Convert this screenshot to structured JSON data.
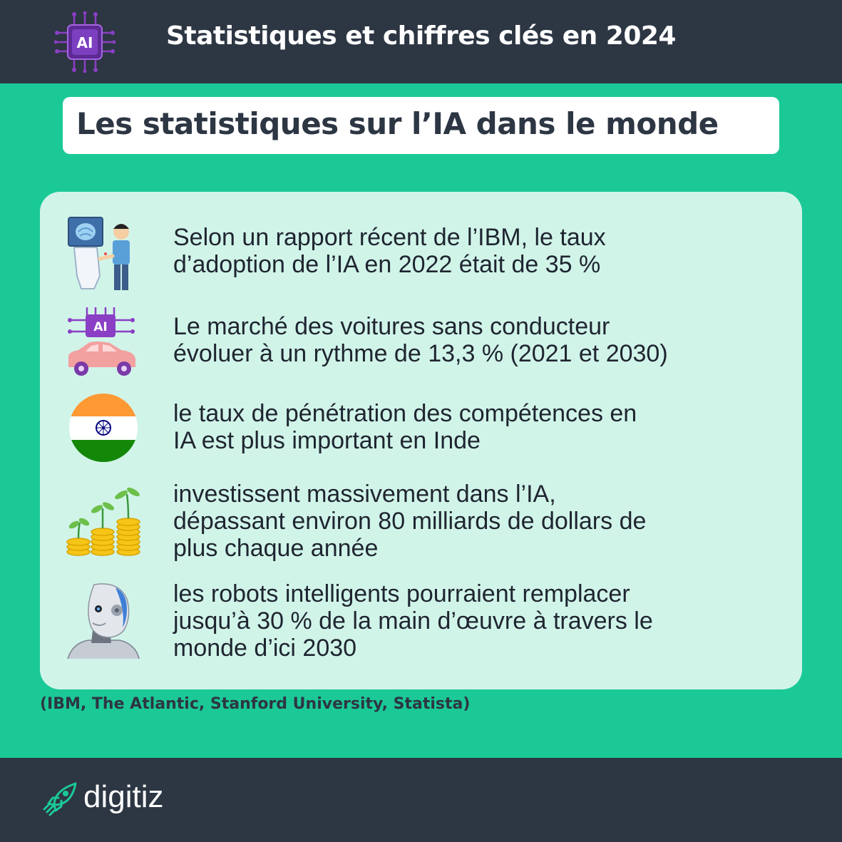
{
  "header": {
    "title": "Statistiques et chiffres clés en 2024",
    "logo_text": "AI"
  },
  "subtitle": "Les statistiques sur l’IA dans le monde",
  "stats": [
    {
      "icon": "robot-handshake-icon",
      "lines": [
        "Selon un rapport récent de l’IBM, le taux",
        "d’adoption de l’IA en 2022 était de 35 %"
      ]
    },
    {
      "icon": "ai-car-icon",
      "chip_text": "AI",
      "lines": [
        "Le marché des voitures sans conducteur",
        "évoluer à un rythme de 13,3 % (2021 et 2030)"
      ]
    },
    {
      "icon": "india-flag-icon",
      "lines": [
        "le taux de pénétration des compétences en",
        "IA est plus important en Inde"
      ]
    },
    {
      "icon": "coin-plant-icon",
      "lines": [
        "investissent massivement dans l’IA,",
        "dépassant environ 80 milliards de dollars de",
        "plus chaque année"
      ]
    },
    {
      "icon": "robot-head-icon",
      "lines": [
        "les robots intelligents pourraient remplacer",
        "jusqu’à 30 % de la main d’œuvre à travers le",
        "monde d’ici 2030"
      ]
    }
  ],
  "sources": "(IBM, The Atlantic, Stanford University, Statista)",
  "footer": {
    "brand": "digitiz"
  },
  "colors": {
    "background": "#1bc997",
    "dark": "#2d3643",
    "card": "#d1f4e9",
    "accent_purple": "#8a3fc4"
  }
}
